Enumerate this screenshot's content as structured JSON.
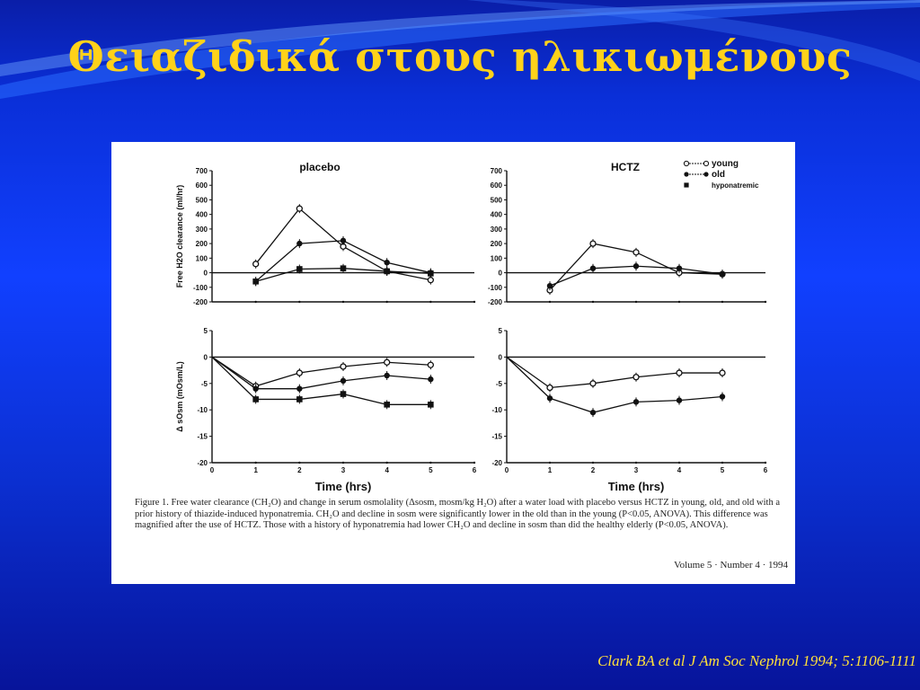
{
  "slide": {
    "title": "Θειαζιδικά στους ηλικιωμένους",
    "citation": "Clark BA  et al J Am Soc Nephrol 1994; 5:1106-1111"
  },
  "figure": {
    "caption": "Figure 1. Free water clearance (CH₂O) and change in serum osmolality (Δsosm, mosm/kg H₂O) after a water load with placebo versus HCTZ in young, old, and old with a prior history of thiazide-induced hyponatremia. CH₂O and decline in sosm were significantly lower in the old than in the young (P<0.05, ANOVA). This difference was magnified after the use of HCTZ. Those with a history of hyponatremia had lower CH₂O and decline in sosm than did the healthy elderly (P<0.05, ANOVA).",
    "volume": "Volume 5 · Number 4 · 1994"
  },
  "colors": {
    "title": "#ffd21a",
    "citation": "#ffe03a",
    "background": "#0a2fd8"
  },
  "chart_data": [
    {
      "type": "line",
      "title": "placebo",
      "ylabel": "Free H2O clearance (ml/hr)",
      "ylim": [
        -200,
        700
      ],
      "yticks": [
        "700",
        "600",
        "500",
        "400",
        "300",
        "200",
        "100",
        "0",
        "-100",
        "-200"
      ],
      "x": [
        0,
        1,
        2,
        3,
        4,
        5
      ],
      "series": [
        {
          "name": "young",
          "marker": "open-circle",
          "x": [
            1,
            2,
            3,
            4,
            5
          ],
          "values": [
            60,
            440,
            180,
            10,
            -50
          ]
        },
        {
          "name": "old",
          "marker": "filled-circle",
          "x": [
            1,
            2,
            3,
            4,
            5
          ],
          "values": [
            -60,
            200,
            220,
            70,
            0
          ]
        },
        {
          "name": "hyponatremic",
          "marker": "filled-square",
          "x": [
            1,
            2,
            3,
            4,
            5
          ],
          "values": [
            -60,
            25,
            30,
            10,
            -5
          ]
        }
      ]
    },
    {
      "type": "line",
      "title": "HCTZ",
      "ylim": [
        -200,
        700
      ],
      "yticks": [
        "700",
        "600",
        "500",
        "400",
        "300",
        "200",
        "100",
        "0",
        "-100",
        "-200"
      ],
      "x": [
        0,
        1,
        2,
        3,
        4,
        5
      ],
      "legend": [
        "young",
        "old",
        "hyponatremic"
      ],
      "series": [
        {
          "name": "young",
          "marker": "open-circle",
          "x": [
            1,
            2,
            3,
            4,
            5
          ],
          "values": [
            -120,
            200,
            140,
            0,
            -10
          ]
        },
        {
          "name": "old",
          "marker": "filled-circle",
          "x": [
            1,
            2,
            3,
            4,
            5
          ],
          "values": [
            -90,
            30,
            45,
            30,
            -10
          ]
        }
      ]
    },
    {
      "type": "line",
      "ylabel": "Δ sOsm (mOsm/L)",
      "xlabel": "Time (hrs)",
      "ylim": [
        -20,
        5
      ],
      "yticks": [
        "5",
        "0",
        "-5",
        "-10",
        "-15",
        "-20"
      ],
      "xticks": [
        "0",
        "1",
        "2",
        "3",
        "4",
        "5",
        "6"
      ],
      "series": [
        {
          "name": "young",
          "marker": "open-circle",
          "x": [
            0,
            1,
            2,
            3,
            4,
            5
          ],
          "values": [
            0,
            -5.5,
            -3,
            -1.8,
            -1,
            -1.5
          ]
        },
        {
          "name": "old",
          "marker": "filled-circle",
          "x": [
            0,
            1,
            2,
            3,
            4,
            5
          ],
          "values": [
            0,
            -6,
            -6,
            -4.5,
            -3.5,
            -4.2
          ]
        },
        {
          "name": "hyponatremic",
          "marker": "filled-square",
          "x": [
            0,
            1,
            2,
            3,
            4,
            5
          ],
          "values": [
            0,
            -8,
            -8,
            -7,
            -9,
            -9
          ]
        }
      ]
    },
    {
      "type": "line",
      "xlabel": "Time (hrs)",
      "ylim": [
        -20,
        5
      ],
      "yticks": [
        "5",
        "0",
        "-5",
        "-10",
        "-15",
        "-20"
      ],
      "xticks": [
        "0",
        "1",
        "2",
        "3",
        "4",
        "5",
        "6"
      ],
      "series": [
        {
          "name": "young",
          "marker": "open-circle",
          "x": [
            0,
            1,
            2,
            3,
            4,
            5
          ],
          "values": [
            0,
            -5.8,
            -5,
            -3.8,
            -3,
            -3
          ]
        },
        {
          "name": "old",
          "marker": "filled-circle",
          "x": [
            0,
            1,
            2,
            3,
            4,
            5
          ],
          "values": [
            0,
            -7.8,
            -10.5,
            -8.5,
            -8.2,
            -7.5
          ]
        }
      ]
    }
  ]
}
